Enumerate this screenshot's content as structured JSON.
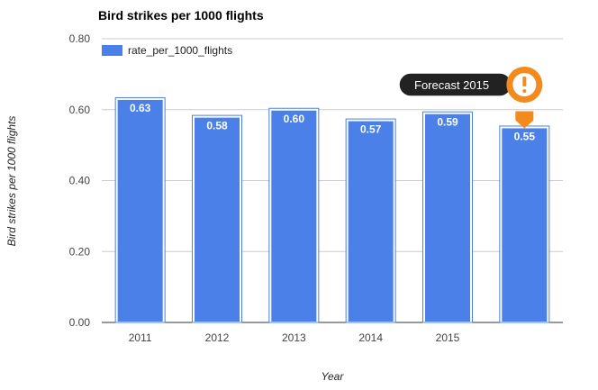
{
  "chart_data": {
    "type": "bar",
    "title": "Bird strikes per 1000 flights",
    "xlabel": "Year",
    "ylabel": "Bird strikes per 1000 flights",
    "categories": [
      "2011",
      "2012",
      "2013",
      "2014",
      "2015",
      ""
    ],
    "series": [
      {
        "name": "rate_per_1000_flights",
        "values": [
          0.63,
          0.58,
          0.6,
          0.57,
          0.59,
          0.55
        ],
        "color": "#4a80e8"
      }
    ],
    "data_labels": [
      "0.63",
      "0.58",
      "0.60",
      "0.57",
      "0.59",
      "0.55"
    ],
    "ylim": [
      0,
      0.8
    ],
    "yticks": [
      "0.00",
      "0.20",
      "0.40",
      "0.60",
      "0.80"
    ],
    "grid": true,
    "legend": "top-left",
    "annotation": {
      "text": "Forecast 2015",
      "icon": "exclamation-marker-icon",
      "category_index": 5,
      "color": "#f28a1e",
      "bubble_color": "#222222"
    }
  }
}
